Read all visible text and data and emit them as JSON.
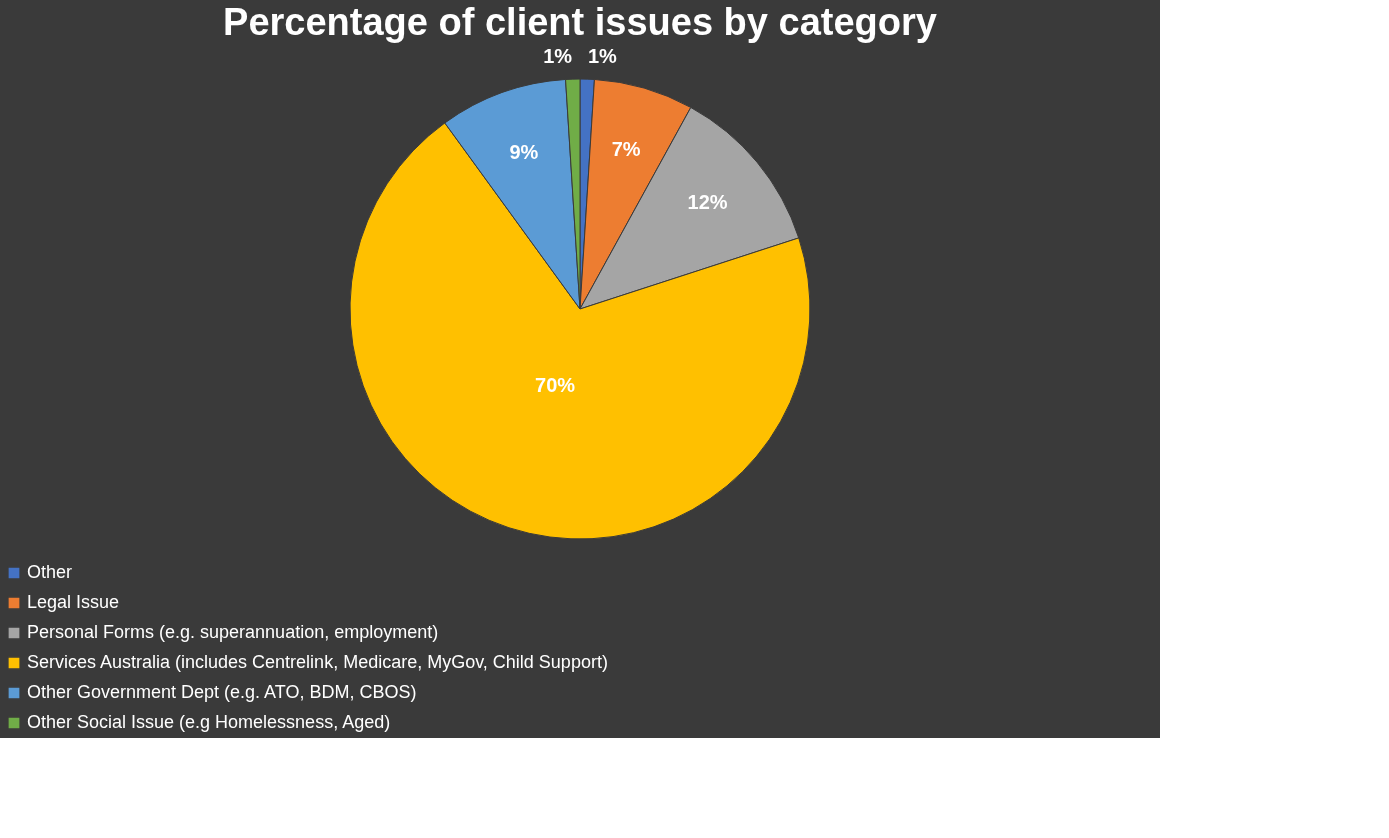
{
  "chart_data": {
    "type": "pie",
    "title": "Percentage of client issues by category",
    "categories": [
      "Other",
      "Legal Issue",
      "Personal Forms (e.g. superannuation, employment)",
      "Services Australia (includes Centrelink, Medicare, MyGov, Child Support)",
      "Other Government Dept (e.g. ATO, BDM, CBOS)",
      "Other Social Issue  (e.g Homelessness, Aged)"
    ],
    "values": [
      1,
      7,
      12,
      70,
      9,
      1
    ],
    "colors": [
      "#4472c4",
      "#ed7d31",
      "#a5a5a5",
      "#ffc000",
      "#5b9bd5",
      "#70ad47"
    ],
    "value_labels": [
      "1%",
      "7%",
      "12%",
      "70%",
      "9%",
      "1%"
    ],
    "legend": "bottom left"
  }
}
